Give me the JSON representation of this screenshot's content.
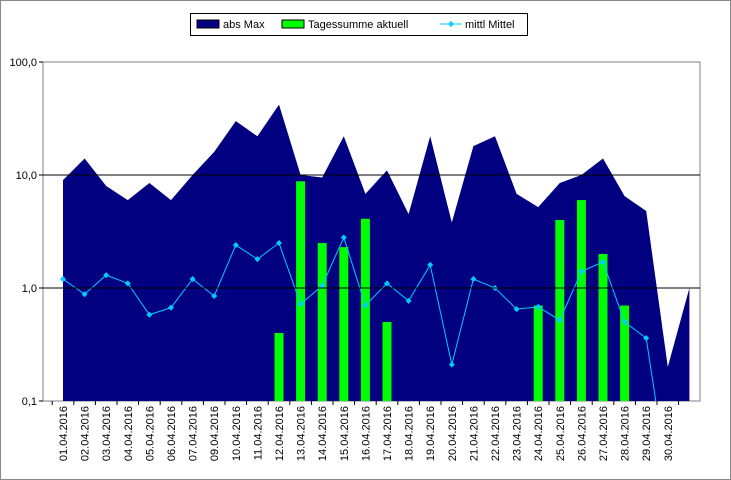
{
  "chart_data": {
    "type": "combo",
    "log_scale": true,
    "grid": true,
    "legend": "top",
    "categories": [
      "01.04.2016",
      "02.04.2016",
      "03.04.2016",
      "04.04.2016",
      "05.04.2016",
      "06.04.2016",
      "07.04.2016",
      "09.04.2016",
      "10.04.2016",
      "11.04.2016",
      "12.04.2016",
      "13.04.2016",
      "14.04.2016",
      "15.04.2016",
      "16.04.2016",
      "17.04.2016",
      "18.04.2016",
      "19.04.2016",
      "20.04.2016",
      "21.04.2016",
      "22.04.2016",
      "23.04.2016",
      "24.04.2016",
      "25.04.2016",
      "26.04.2016",
      "27.04.2016",
      "28.04.2016",
      "29.04.2016",
      "30.04.2016",
      null
    ],
    "series": [
      {
        "name": "abs Max",
        "kind": "area",
        "color": "#000080",
        "values": [
          9,
          14,
          8,
          6,
          8.5,
          6,
          10,
          16,
          30,
          22,
          42,
          10,
          9.5,
          22,
          6.8,
          11,
          4.5,
          22,
          3.8,
          18,
          22,
          6.8,
          5.2,
          8.5,
          10,
          14,
          6.5,
          4.8,
          0.2,
          1.0
        ]
      },
      {
        "name": "Tagessumme aktuell",
        "kind": "bar",
        "color": "#00ff00",
        "values": [
          null,
          null,
          null,
          null,
          null,
          null,
          null,
          null,
          null,
          null,
          0.4,
          8.8,
          2.5,
          2.3,
          4.1,
          0.5,
          null,
          null,
          null,
          null,
          null,
          null,
          0.7,
          4.0,
          6.0,
          2.0,
          0.7,
          null,
          null,
          null
        ]
      },
      {
        "name": "mittl Mittel",
        "kind": "line",
        "color": "#00ccff",
        "values": [
          1.2,
          0.88,
          1.3,
          1.1,
          0.58,
          0.67,
          1.2,
          0.85,
          2.4,
          1.8,
          2.5,
          0.72,
          1.05,
          2.8,
          0.7,
          1.1,
          0.77,
          1.6,
          0.21,
          1.2,
          1.0,
          0.65,
          0.68,
          0.52,
          1.4,
          1.7,
          0.5,
          0.36,
          0.02,
          null
        ]
      }
    ],
    "ylim": [
      0.1,
      100
    ],
    "yticks": [
      {
        "value": 0.1,
        "label": "0,1"
      },
      {
        "value": 1,
        "label": "1,0"
      },
      {
        "value": 10,
        "label": "10,0"
      },
      {
        "value": 100,
        "label": "100,0"
      }
    ]
  }
}
